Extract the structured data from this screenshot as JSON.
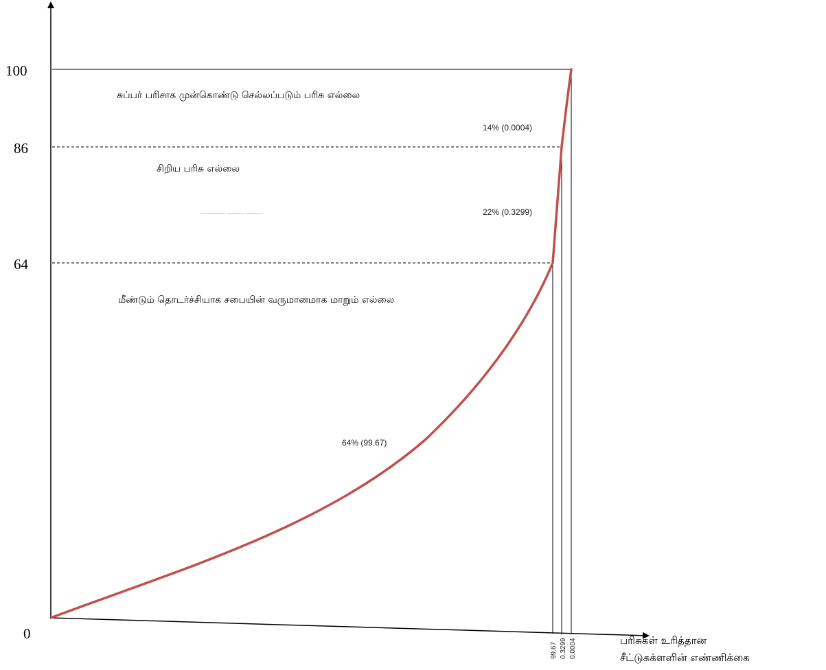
{
  "chart_data": {
    "type": "line",
    "y_axis": {
      "ticks": [
        {
          "value": 0,
          "label": "0"
        },
        {
          "value": 64,
          "label": "64"
        },
        {
          "value": 86,
          "label": "86"
        },
        {
          "value": 100,
          "label": "100"
        }
      ]
    },
    "x_axis": {
      "label_line1": "பரிசுகள் உரித்தான",
      "label_line2": "சீட்டுகக்ளளின் எண்ணிக்கை",
      "ticks": [
        "99.67",
        "0.3299",
        "0.0004"
      ]
    },
    "series": [
      {
        "color": "#c0504d",
        "points": [
          [
            0,
            0
          ],
          [
            0.9967,
            64
          ],
          [
            0.99997,
            86
          ],
          [
            1.0,
            100
          ]
        ]
      }
    ],
    "segments": [
      {
        "label": "14% (0.0004)"
      },
      {
        "label": "22% (0.3299)"
      },
      {
        "label": "64% (99.67)"
      }
    ],
    "zones": [
      {
        "label": "சுப்பர் பரிசாக முன்கொண்டு செல்லப்படும் பரிசு எல்லை"
      },
      {
        "label": "சிறிய பரிசு எல்லை"
      },
      {
        "label": "மீண்டும் தொடர்ச்சியாக சபையின் வருமானமாக மாறும் எல்லை"
      }
    ],
    "ghost_text": "——— —— ——"
  }
}
